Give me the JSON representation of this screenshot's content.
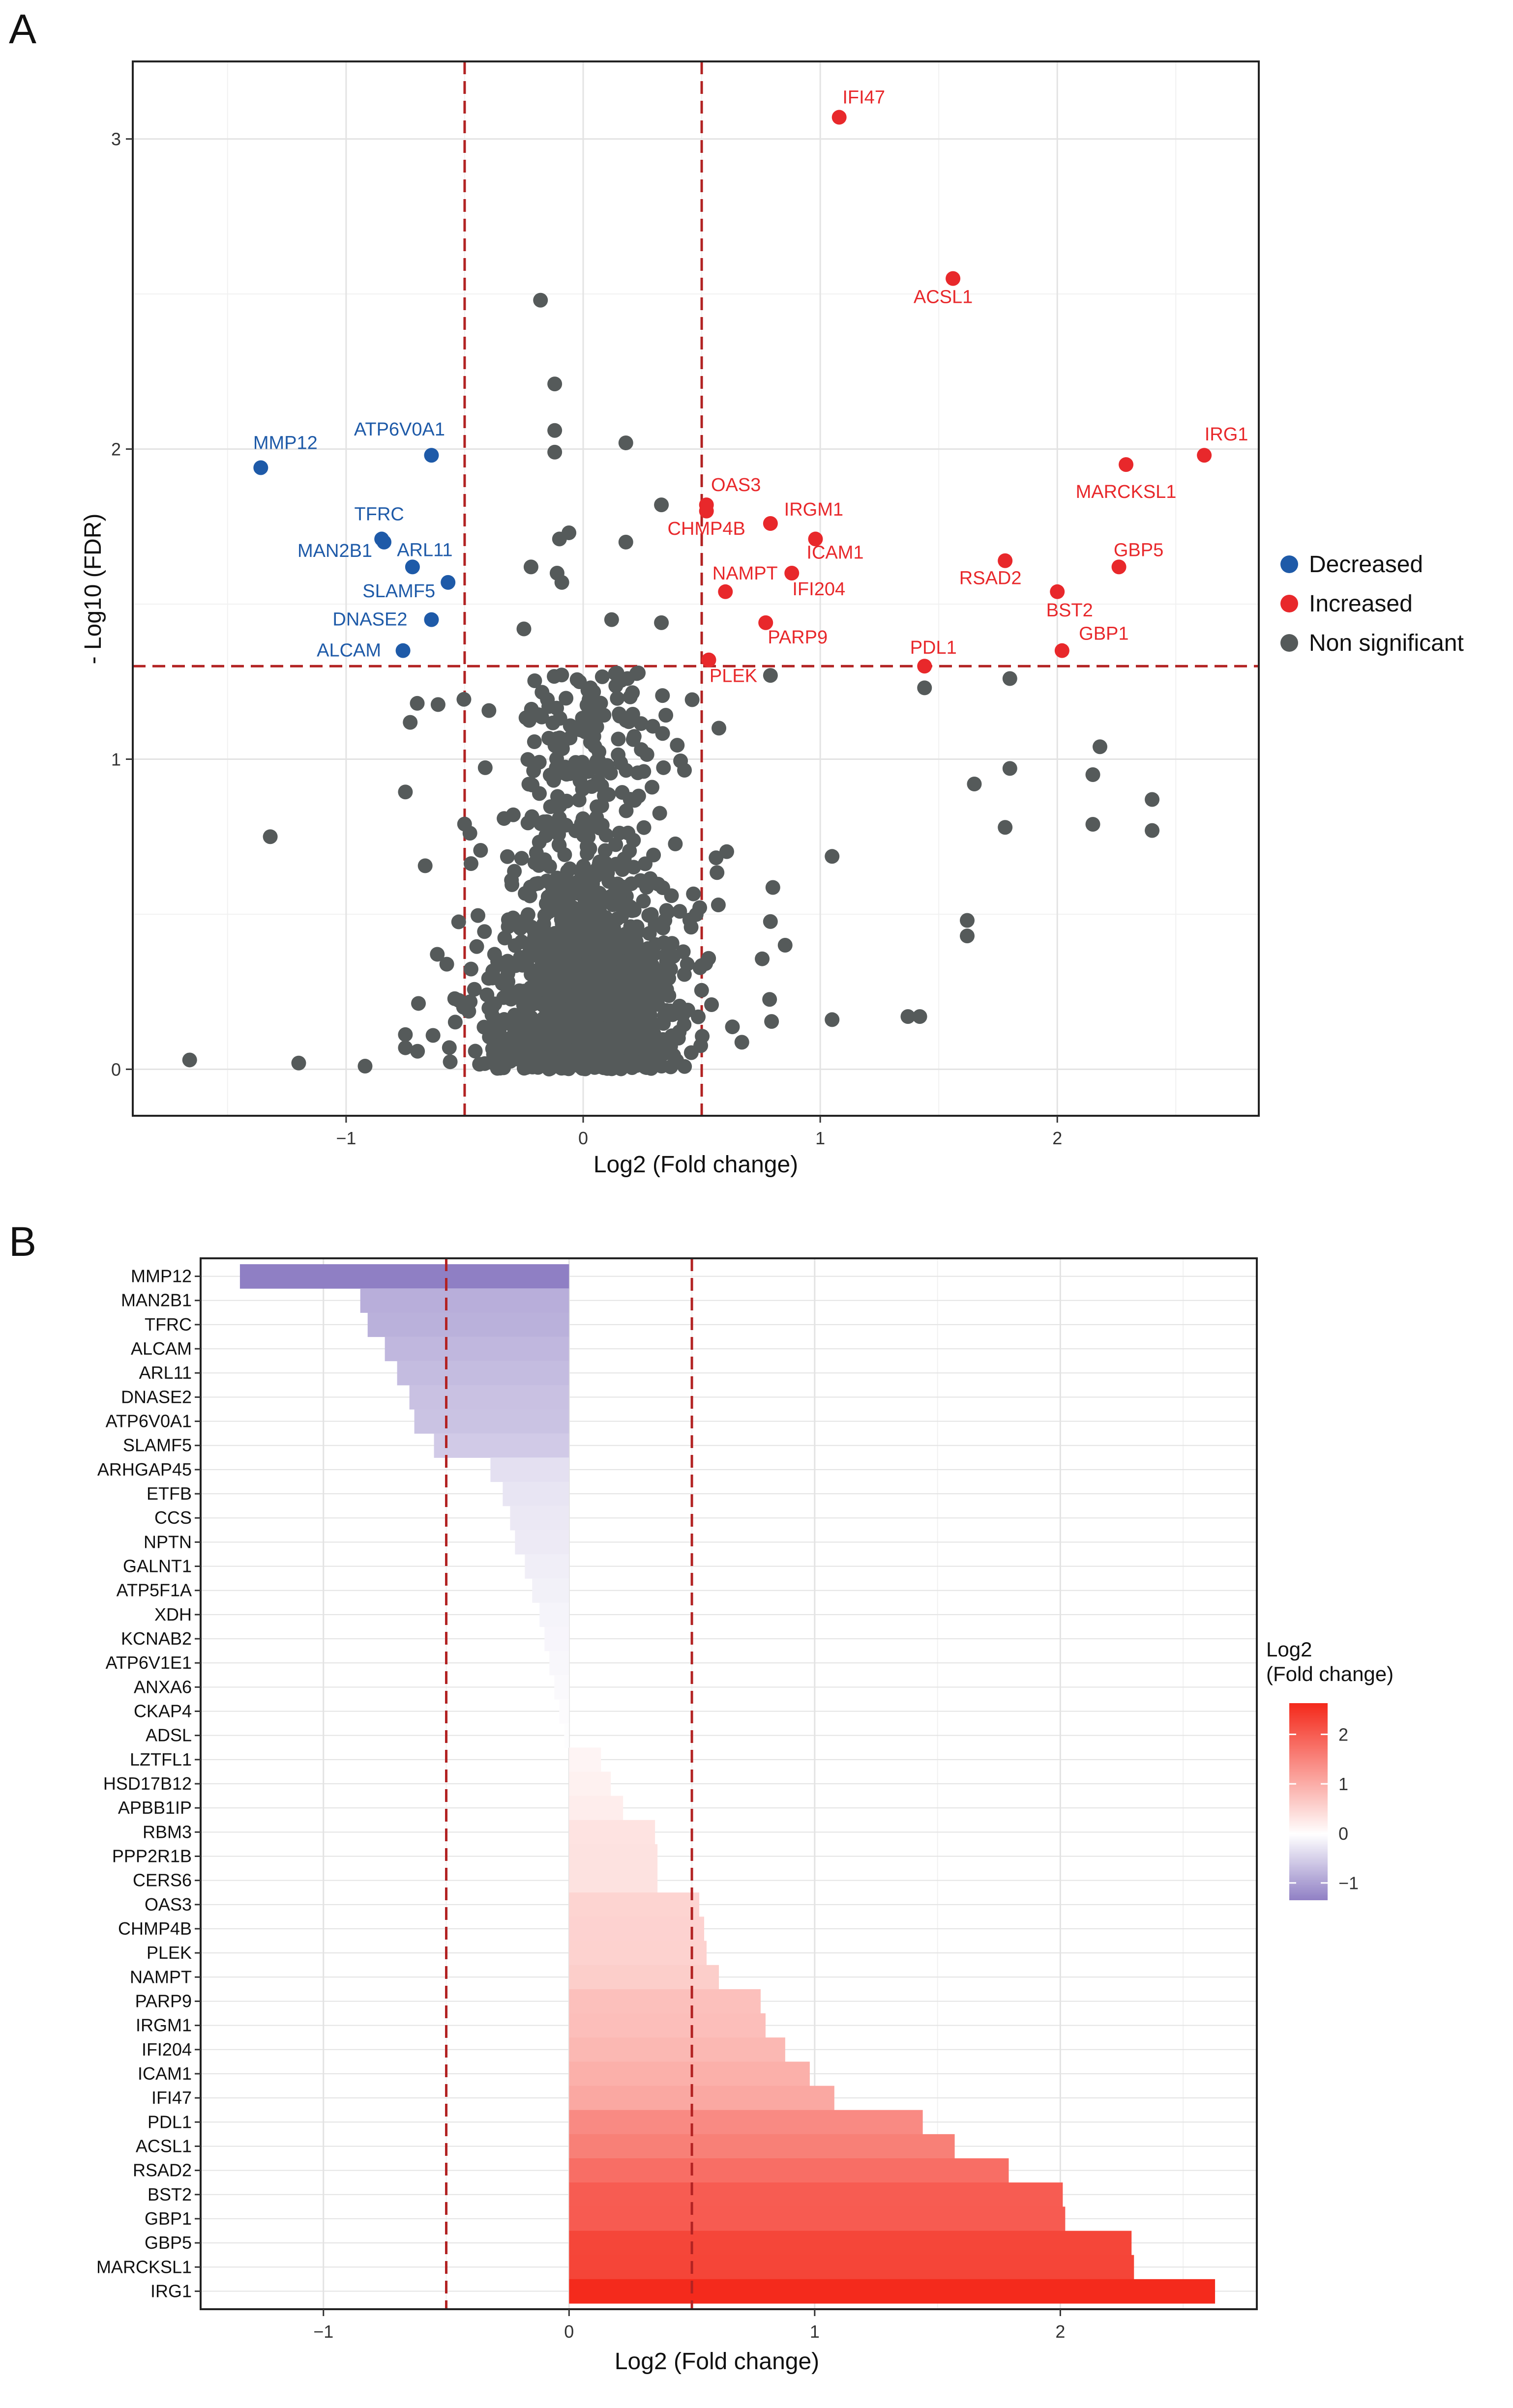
{
  "panels": {
    "a_letter": "A",
    "b_letter": "B"
  },
  "colors": {
    "decreased": "#1e5aa8",
    "increased": "#e8282b",
    "nonsig": "#555a5a",
    "threshold": "#b22222",
    "grid_major": "#e3e3e3",
    "grid_minor": "#f1f1f1",
    "bar_low": "#8f7fc4",
    "bar_mid": "#ffffff",
    "bar_high": "#f42a1c"
  },
  "chart_data": [
    {
      "type": "scatter",
      "xlabel": "Log2 (Fold change)",
      "ylabel": "- Log10 (FDR)",
      "xlim": [
        -1.9,
        2.85
      ],
      "ylim": [
        -0.15,
        3.25
      ],
      "x_ticks": [
        -1,
        0,
        1,
        2
      ],
      "x_tick_labels": [
        "−1",
        "0",
        "1",
        "2"
      ],
      "y_ticks": [
        0,
        1,
        2,
        3
      ],
      "y_tick_labels": [
        "0",
        "1",
        "2",
        "3"
      ],
      "thresholds": {
        "x": [
          -0.5,
          0.5
        ],
        "y": 1.3
      },
      "grid": true,
      "legend": {
        "position": "right",
        "entries": [
          {
            "name": "Decreased",
            "color": "#1e5aa8"
          },
          {
            "name": "Increased",
            "color": "#e8282b"
          },
          {
            "name": "Non significant",
            "color": "#555a5a"
          }
        ]
      },
      "decreased": [
        {
          "label": "MMP12",
          "x": -1.36,
          "y": 1.94
        },
        {
          "label": "ATP6V0A1",
          "x": -0.64,
          "y": 1.98
        },
        {
          "label": "TFRC",
          "x": -0.85,
          "y": 1.71
        },
        {
          "label": "MAN2B1",
          "x": -0.84,
          "y": 1.7
        },
        {
          "label": "ARL11",
          "x": -0.72,
          "y": 1.62
        },
        {
          "label": "SLAMF5",
          "x": -0.57,
          "y": 1.57
        },
        {
          "label": "DNASE2",
          "x": -0.64,
          "y": 1.45
        },
        {
          "label": "ALCAM",
          "x": -0.76,
          "y": 1.35
        }
      ],
      "increased": [
        {
          "label": "IFI47",
          "x": 1.08,
          "y": 3.07
        },
        {
          "label": "ACSL1",
          "x": 1.56,
          "y": 2.55
        },
        {
          "label": "IRG1",
          "x": 2.62,
          "y": 1.98
        },
        {
          "label": "MARCKSL1",
          "x": 2.29,
          "y": 1.95
        },
        {
          "label": "OAS3",
          "x": 0.52,
          "y": 1.82
        },
        {
          "label": "IRGM1",
          "x": 0.79,
          "y": 1.76
        },
        {
          "label": "CHMP4B",
          "x": 0.52,
          "y": 1.8
        },
        {
          "label": "ICAM1",
          "x": 0.98,
          "y": 1.71
        },
        {
          "label": "GBP5",
          "x": 2.26,
          "y": 1.62
        },
        {
          "label": "RSAD2",
          "x": 1.78,
          "y": 1.64
        },
        {
          "label": "NAMPT",
          "x": 0.6,
          "y": 1.54
        },
        {
          "label": "IFI204",
          "x": 0.88,
          "y": 1.6
        },
        {
          "label": "BST2",
          "x": 2.0,
          "y": 1.54
        },
        {
          "label": "PARP9",
          "x": 0.77,
          "y": 1.44
        },
        {
          "label": "GBP1",
          "x": 2.02,
          "y": 1.35
        },
        {
          "label": "PDL1",
          "x": 1.44,
          "y": 1.3
        },
        {
          "label": "PLEK",
          "x": 0.53,
          "y": 1.32
        }
      ],
      "nonsignificant_notable": [
        {
          "x": -0.18,
          "y": 2.48
        },
        {
          "x": -0.12,
          "y": 2.21
        },
        {
          "x": -0.12,
          "y": 2.06
        },
        {
          "x": -0.12,
          "y": 1.99
        },
        {
          "x": 0.18,
          "y": 2.02
        },
        {
          "x": -0.1,
          "y": 1.71
        },
        {
          "x": -0.06,
          "y": 1.73
        },
        {
          "x": 0.33,
          "y": 1.82
        },
        {
          "x": 0.18,
          "y": 1.7
        },
        {
          "x": -0.22,
          "y": 1.62
        },
        {
          "x": -0.11,
          "y": 1.6
        },
        {
          "x": -0.09,
          "y": 1.57
        },
        {
          "x": 0.12,
          "y": 1.45
        },
        {
          "x": 0.33,
          "y": 1.44
        },
        {
          "x": -0.25,
          "y": 1.42
        },
        {
          "x": -0.7,
          "y": 1.18
        },
        {
          "x": 0.79,
          "y": 1.27
        },
        {
          "x": 1.44,
          "y": 1.23
        },
        {
          "x": 1.8,
          "y": 1.26
        },
        {
          "x": -1.32,
          "y": 0.75
        },
        {
          "x": -1.2,
          "y": 0.02
        },
        {
          "x": -1.66,
          "y": 0.03
        },
        {
          "x": -0.92,
          "y": 0.01
        },
        {
          "x": 1.62,
          "y": 0.48
        },
        {
          "x": 1.62,
          "y": 0.43
        },
        {
          "x": 1.42,
          "y": 0.17
        },
        {
          "x": 1.37,
          "y": 0.17
        },
        {
          "x": 2.15,
          "y": 0.79
        },
        {
          "x": 2.4,
          "y": 0.77
        },
        {
          "x": 2.4,
          "y": 0.87
        },
        {
          "x": 2.15,
          "y": 0.95
        },
        {
          "x": 1.78,
          "y": 0.78
        },
        {
          "x": 1.8,
          "y": 0.97
        },
        {
          "x": 2.18,
          "y": 1.04
        },
        {
          "x": 1.65,
          "y": 0.92
        },
        {
          "x": 1.05,
          "y": 0.16
        }
      ]
    },
    {
      "type": "bar",
      "orientation": "horizontal",
      "xlabel": "Log2 (Fold change)",
      "xlim": [
        -1.5,
        2.8
      ],
      "x_ticks": [
        -1,
        0,
        1,
        2
      ],
      "x_tick_labels": [
        "−1",
        "0",
        "1",
        "2"
      ],
      "thresholds": {
        "x": [
          -0.5,
          0.5
        ]
      },
      "grid": true,
      "categories": [
        "MMP12",
        "MAN2B1",
        "TFRC",
        "ALCAM",
        "ARL11",
        "DNASE2",
        "ATP6V0A1",
        "SLAMF5",
        "ARHGAP45",
        "ETFB",
        "CCS",
        "NPTN",
        "GALNT1",
        "ATP5F1A",
        "XDH",
        "KCNAB2",
        "ATP6V1E1",
        "ANXA6",
        "CKAP4",
        "ADSL",
        "LZTFL1",
        "HSD17B12",
        "APBB1IP",
        "RBM3",
        "PPP2R1B",
        "CERS6",
        "OAS3",
        "CHMP4B",
        "PLEK",
        "NAMPT",
        "PARP9",
        "IRGM1",
        "IFI204",
        "ICAM1",
        "IFI47",
        "PDL1",
        "ACSL1",
        "RSAD2",
        "BST2",
        "GBP1",
        "GBP5",
        "MARCKSL1",
        "IRG1"
      ],
      "values": [
        -1.34,
        -0.85,
        -0.82,
        -0.75,
        -0.7,
        -0.65,
        -0.63,
        -0.55,
        -0.32,
        -0.27,
        -0.24,
        -0.22,
        -0.18,
        -0.15,
        -0.12,
        -0.1,
        -0.08,
        -0.06,
        -0.04,
        -0.02,
        0.13,
        0.17,
        0.22,
        0.35,
        0.36,
        0.36,
        0.53,
        0.55,
        0.56,
        0.61,
        0.78,
        0.8,
        0.88,
        0.98,
        1.08,
        1.44,
        1.57,
        1.79,
        2.01,
        2.02,
        2.29,
        2.3,
        2.63
      ],
      "legend": {
        "title_lines": [
          "Log2",
          "(Fold change)"
        ],
        "position": "right",
        "ticks": [
          2,
          1,
          0,
          -1
        ],
        "tick_labels": [
          "2",
          "1",
          "0",
          "−1"
        ]
      }
    }
  ]
}
